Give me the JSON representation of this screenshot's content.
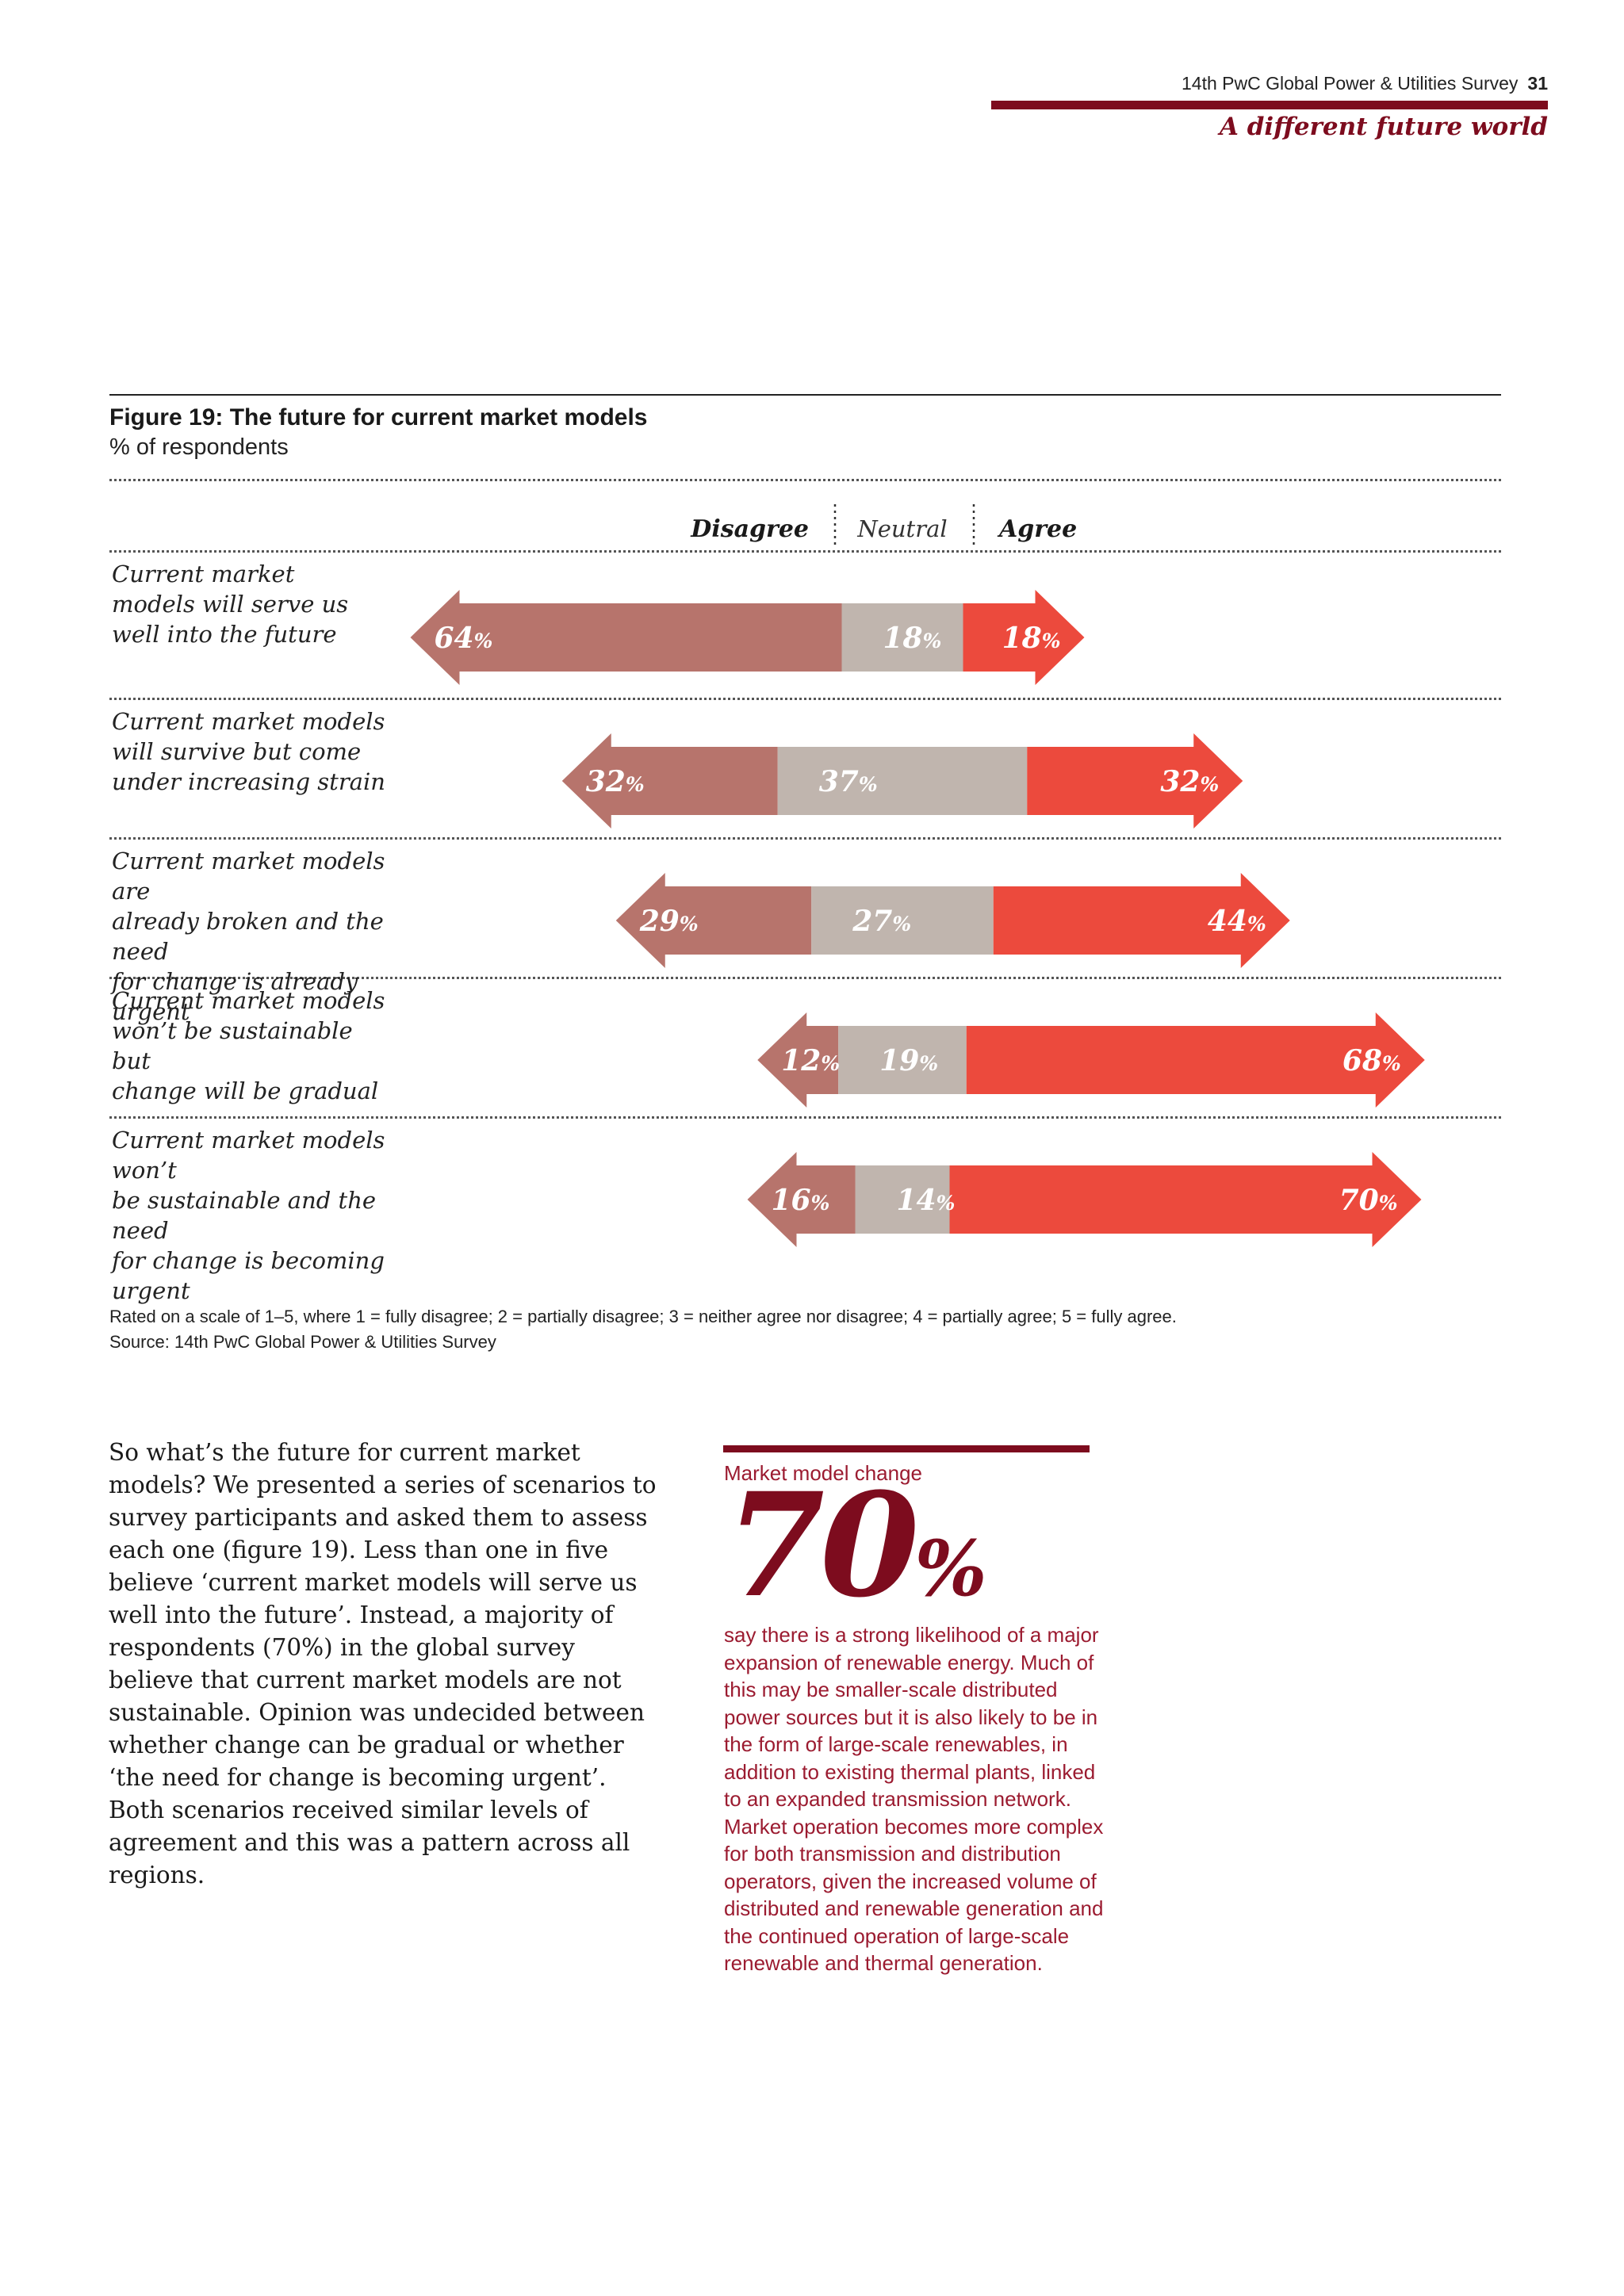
{
  "header": {
    "survey": "14th PwC Global Power & Utilities Survey",
    "page_number": "31",
    "section": "A different future world"
  },
  "figure": {
    "title": "Figure 19: The future for current market models",
    "subtitle": "% of respondents",
    "note": "Rated on a scale of 1–5, where 1 = fully disagree; 2 = partially disagree; 3 = neither agree nor disagree; 4 = partially agree; 5 = fully agree.",
    "source": "Source: 14th PwC Global Power & Utilities Survey"
  },
  "chart_data": {
    "type": "bar",
    "orientation": "horizontal-diverging",
    "title": "Figure 19: The future for current market models",
    "subtitle": "% of respondents",
    "legend_position": "top-center",
    "categories": [
      "Current market models will serve us well into the future",
      "Current market models will survive but come under increasing strain",
      "Current market models are already broken and the need for change is already urgent",
      "Current market models won’t be sustainable but change will be gradual",
      "Current market models won’t be sustainable and the need for change is becoming urgent"
    ],
    "category_lines": [
      [
        "Current market",
        "models will serve us",
        "well into the future"
      ],
      [
        "Current market models",
        "will survive but come",
        "under increasing strain"
      ],
      [
        "Current market models are",
        "already broken and the need",
        "for change is already urgent"
      ],
      [
        "Current market models",
        "won’t be sustainable but",
        "change will be gradual"
      ],
      [
        "Current market models won’t",
        "be sustainable and the need",
        "for change is becoming urgent"
      ]
    ],
    "series": [
      {
        "name": "Disagree",
        "color": "#b7746c",
        "values": [
          64,
          32,
          29,
          12,
          16
        ]
      },
      {
        "name": "Neutral",
        "color": "#c0b5ae",
        "values": [
          18,
          37,
          27,
          19,
          14
        ]
      },
      {
        "name": "Agree",
        "color": "#ec4a3d",
        "values": [
          18,
          32,
          44,
          68,
          70
        ]
      }
    ],
    "unit_suffix": "%",
    "grid": false
  },
  "callout": {
    "label": "Market model change",
    "value": "70",
    "unit": "%",
    "text": "say there is a strong likelihood of a major expansion of renewable energy. Much of this may be smaller-scale distributed power sources but it is also likely to be in the form of large-scale renewables, in addition to existing thermal plants, linked to an expanded transmission network. Market operation becomes more complex for both transmission and distribution operators, given the increased volume of distributed and renewable generation and the continued operation of large-scale renewable and thermal generation."
  },
  "body": {
    "paragraph": "So what’s the future for current market models? We presented a series of scenarios to survey participants and asked them to assess each one (figure 19). Less than one in five believe ‘current market models will serve us well into the future’. Instead, a majority of respondents (70%) in the global survey believe that current market models are not sustainable. Opinion was undecided between whether change can be gradual or whether ‘the need for change is becoming urgent’. Both scenarios received similar levels of agreement and this was a pattern across all regions."
  }
}
